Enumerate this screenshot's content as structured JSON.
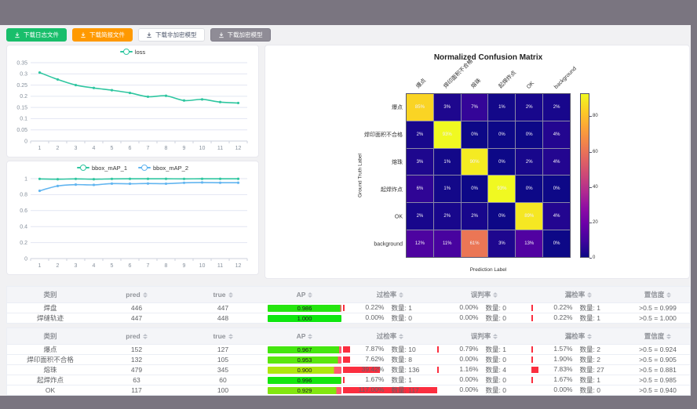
{
  "chrome": {
    "frame_color": "#7a7580"
  },
  "toolbar": {
    "buttons": [
      {
        "label": "下载日志文件",
        "variant": "success"
      },
      {
        "label": "下载简报文件",
        "variant": "warning"
      },
      {
        "label": "下载非加密模型",
        "variant": "default"
      },
      {
        "label": "下载加密模型",
        "variant": "disabled"
      }
    ]
  },
  "chart_data": {
    "loss": {
      "type": "line",
      "x": [
        1,
        2,
        3,
        4,
        5,
        6,
        7,
        8,
        9,
        10,
        11,
        12
      ],
      "series": [
        {
          "name": "loss",
          "color": "#2fc6a0",
          "values": [
            0.306,
            0.275,
            0.25,
            0.237,
            0.227,
            0.215,
            0.198,
            0.202,
            0.181,
            0.186,
            0.174,
            0.17
          ]
        }
      ],
      "y_ticks": [
        0,
        0.05,
        0.1,
        0.15,
        0.2,
        0.25,
        0.3,
        0.35
      ],
      "y_max": 0.35,
      "legend_position": "top",
      "grid": true
    },
    "bbox_map": {
      "type": "line",
      "x": [
        1,
        2,
        3,
        4,
        5,
        6,
        7,
        8,
        9,
        10,
        11,
        12
      ],
      "series": [
        {
          "name": "bbox_mAP_1",
          "color": "#2fc6a0",
          "values": [
            0.997,
            0.993,
            0.997,
            0.993,
            0.997,
            0.998,
            0.998,
            0.998,
            0.997,
            0.998,
            0.998,
            0.998
          ]
        },
        {
          "name": "bbox_mAP_2",
          "color": "#62b5f0",
          "values": [
            0.848,
            0.908,
            0.925,
            0.922,
            0.938,
            0.936,
            0.939,
            0.937,
            0.948,
            0.952,
            0.949,
            0.949
          ]
        }
      ],
      "y_ticks": [
        0,
        0.2,
        0.4,
        0.6,
        0.8,
        1
      ],
      "y_max": 1,
      "legend_position": "top",
      "grid": true
    },
    "confusion_matrix": {
      "type": "heatmap",
      "title": "Normalized Confusion Matrix",
      "xlabel": "Prediction Label",
      "ylabel": "Ground Truth Label",
      "labels": [
        "爆点",
        "焊印面积不合格",
        "熔珠",
        "起焊炸点",
        "OK",
        "background"
      ],
      "matrix_percent": [
        [
          85,
          3,
          7,
          1,
          2,
          2
        ],
        [
          2,
          93,
          0,
          0,
          0,
          4
        ],
        [
          3,
          1,
          90,
          0,
          2,
          4
        ],
        [
          6,
          1,
          0,
          93,
          0,
          0
        ],
        [
          2,
          2,
          2,
          0,
          89,
          4
        ],
        [
          12,
          11,
          61,
          3,
          13,
          0
        ]
      ],
      "vmax": 93,
      "colorbar_ticks": [
        0,
        20,
        40,
        60,
        80
      ],
      "colormap": "plasma"
    }
  },
  "tables": {
    "count_label": "数量:",
    "bar_red": "#fb2e3f",
    "ap_remainder_red": "#ff5a6e",
    "headers": [
      {
        "label": "类别",
        "sortable": false
      },
      {
        "label": "pred",
        "sortable": true
      },
      {
        "label": "true",
        "sortable": true
      },
      {
        "label": "AP",
        "sortable": true
      },
      {
        "label": "过检率",
        "sortable": true
      },
      {
        "label": "误判率",
        "sortable": true
      },
      {
        "label": "漏检率",
        "sortable": true
      },
      {
        "label": "置信度",
        "sortable": true
      }
    ],
    "table1_rows": [
      {
        "category": "焊盘",
        "pred": 446,
        "true_val": 447,
        "ap": 0.986,
        "over": {
          "rate": 0.22,
          "count": 1
        },
        "mis": {
          "rate": 0.0,
          "count": 0
        },
        "miss": {
          "rate": 0.22,
          "count": 1
        },
        "confidence": ">0.5 = 0.999"
      },
      {
        "category": "焊缝轨迹",
        "pred": 447,
        "true_val": 448,
        "ap": 1.0,
        "over": {
          "rate": 0.0,
          "count": 0
        },
        "mis": {
          "rate": 0.0,
          "count": 0
        },
        "miss": {
          "rate": 0.22,
          "count": 1
        },
        "confidence": ">0.5 = 1.000"
      }
    ],
    "table2_rows": [
      {
        "category": "爆点",
        "pred": 152,
        "true_val": 127,
        "ap": 0.967,
        "over": {
          "rate": 7.87,
          "count": 10
        },
        "mis": {
          "rate": 0.79,
          "count": 1
        },
        "miss": {
          "rate": 1.57,
          "count": 2
        },
        "confidence": ">0.5 = 0.924"
      },
      {
        "category": "焊印面积不合格",
        "pred": 132,
        "true_val": 105,
        "ap": 0.953,
        "over": {
          "rate": 7.62,
          "count": 8
        },
        "mis": {
          "rate": 0.0,
          "count": 0
        },
        "miss": {
          "rate": 1.9,
          "count": 2
        },
        "confidence": ">0.5 = 0.905"
      },
      {
        "category": "熔珠",
        "pred": 479,
        "true_val": 345,
        "ap": 0.9,
        "over": {
          "rate": 39.42,
          "count": 136
        },
        "mis": {
          "rate": 1.16,
          "count": 4
        },
        "miss": {
          "rate": 7.83,
          "count": 27
        },
        "confidence": ">0.5 = 0.881"
      },
      {
        "category": "起焊炸点",
        "pred": 63,
        "true_val": 60,
        "ap": 0.996,
        "over": {
          "rate": 1.67,
          "count": 1
        },
        "mis": {
          "rate": 0.0,
          "count": 0
        },
        "miss": {
          "rate": 1.67,
          "count": 1
        },
        "confidence": ">0.5 = 0.985"
      },
      {
        "category": "OK",
        "pred": 117,
        "true_val": 100,
        "ap": 0.929,
        "over": {
          "rate": 117.0,
          "count": 117
        },
        "mis": {
          "rate": 0.0,
          "count": 0
        },
        "miss": {
          "rate": 0.0,
          "count": 0
        },
        "confidence": ">0.5 = 0.940"
      }
    ]
  }
}
